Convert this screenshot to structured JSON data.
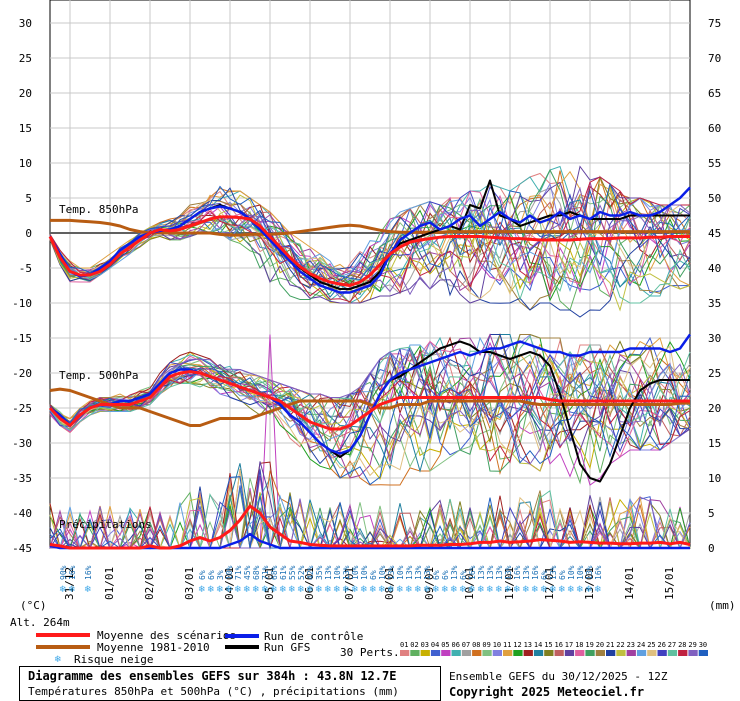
{
  "chart_data": {
    "type": "line",
    "title": "Diagramme des ensembles GEFS sur 384h : 43.8N 12.7E",
    "subtitle": "Températures 850hPa et 500hPa (°C) , précipitations (mm)",
    "run_label": "Ensemble GEFS du 30/12/2025 - 12Z",
    "copyright": "Copyright 2025 Meteociel.fr",
    "altitude": "Alt. 264m",
    "left_unit": "(°C)",
    "right_unit": "(mm)",
    "y_left_ticks": [
      "30",
      "25",
      "20",
      "15",
      "10",
      "5",
      "0",
      "-5",
      "-10",
      "-15",
      "-20",
      "-25",
      "-30",
      "-35",
      "-40",
      "-45"
    ],
    "y_right_ticks": [
      "75",
      "70",
      "65",
      "60",
      "55",
      "50",
      "45",
      "40",
      "35",
      "30",
      "25",
      "20",
      "15",
      "10",
      "5",
      "0"
    ],
    "ylim_left": [
      -45,
      30
    ],
    "ylim_right": [
      0,
      75
    ],
    "x_dates": [
      "31/12",
      "01/01",
      "02/01",
      "03/01",
      "04/01",
      "05/01",
      "06/01",
      "07/01",
      "08/01",
      "09/01",
      "10/01",
      "11/01",
      "12/01",
      "13/01",
      "14/01",
      "15/01"
    ],
    "section_labels": {
      "t850": "Temp. 850hPa",
      "t500": "Temp. 500hPa",
      "precip": "Précipitations"
    },
    "legend": {
      "mean": "Moyenne des scénarios",
      "clim": "Moyenne 1981-2010",
      "snow": "Risque neige",
      "control": "Run de contrôle",
      "gfs": "Run GFS",
      "perts": "30 Perts."
    },
    "member_ids": [
      "01",
      "02",
      "03",
      "04",
      "05",
      "06",
      "07",
      "08",
      "09",
      "10",
      "11",
      "12",
      "13",
      "14",
      "15",
      "16",
      "17",
      "18",
      "19",
      "20",
      "21",
      "22",
      "23",
      "24",
      "25",
      "26",
      "27",
      "28",
      "29",
      "30"
    ],
    "member_colors": [
      "#e08080",
      "#60b060",
      "#c8b000",
      "#4060d0",
      "#c040c0",
      "#40b0b0",
      "#a0a0a0",
      "#d07020",
      "#80c080",
      "#8080e0",
      "#e0a040",
      "#20a020",
      "#a02020",
      "#2080a0",
      "#808020",
      "#c06060",
      "#6040a0",
      "#e060a0",
      "#40a060",
      "#a08040",
      "#2040a0",
      "#c0c040",
      "#a040a0",
      "#60a0e0",
      "#e0c080",
      "#4040c0",
      "#60c0a0",
      "#c02040",
      "#8060c0",
      "#2060c0"
    ],
    "colors": {
      "mean": "#ff1a1a",
      "clim": "#b85c12",
      "control": "#0a1ee8",
      "gfs": "#000000"
    },
    "x_steps": 65,
    "t850_mean": [
      -0.5,
      -3.5,
      -5.5,
      -6,
      -6,
      -5.5,
      -4.5,
      -3,
      -2,
      -1,
      0,
      0.5,
      0.3,
      0.5,
      1,
      1.5,
      2,
      2.3,
      2.3,
      2.2,
      2,
      1,
      -0.5,
      -2,
      -3.5,
      -4.8,
      -5.8,
      -6.5,
      -7,
      -7.3,
      -7.5,
      -7,
      -6,
      -4.5,
      -3,
      -2,
      -1.3,
      -1,
      -0.8,
      -0.6,
      -0.5,
      -0.5,
      -0.5,
      -0.5,
      -0.6,
      -0.7,
      -0.8,
      -0.8,
      -0.9,
      -1,
      -1,
      -1,
      -1,
      -0.9,
      -0.8,
      -0.8,
      -0.8,
      -0.7,
      -0.7,
      -0.7,
      -0.6,
      -0.6,
      -0.5,
      -0.5,
      -0.5
    ],
    "t850_clim": [
      1.8,
      1.8,
      1.8,
      1.7,
      1.6,
      1.5,
      1.3,
      1.0,
      0.5,
      0.2,
      0.0,
      0.0,
      0.0,
      0.0,
      0.0,
      0.0,
      0.0,
      -0.2,
      -0.3,
      -0.3,
      -0.2,
      -0.2,
      -0.2,
      -0.1,
      0.0,
      0.2,
      0.4,
      0.6,
      0.8,
      1.0,
      1.1,
      1.0,
      0.7,
      0.4,
      0.2,
      0.1,
      0.1,
      0.1,
      0.1,
      0.1,
      0.2,
      0.2,
      0.2,
      0.2,
      0.2,
      0.2,
      0.2,
      0.2,
      0.2,
      0.2,
      0.2,
      0.2,
      0.2,
      0.2,
      0.2,
      0.2,
      0.2,
      0.2,
      0.2,
      0.2,
      0.2,
      0.2,
      0.2,
      0.2,
      0.2
    ],
    "t850_control": [
      -0.5,
      -3,
      -5.5,
      -6.2,
      -6,
      -5,
      -4,
      -2.5,
      -1.5,
      -0.5,
      0,
      0.3,
      0.5,
      1,
      2,
      3,
      3.5,
      3.8,
      3.5,
      3,
      2,
      0.5,
      -1,
      -2.5,
      -4,
      -5.5,
      -6.5,
      -7.5,
      -8,
      -8.5,
      -8.5,
      -8,
      -7.5,
      -6,
      -3,
      -1,
      0,
      1,
      1.5,
      0.5,
      1,
      2,
      2.5,
      1,
      2,
      3,
      2,
      1.5,
      2.5,
      1.5,
      2,
      3,
      2,
      2.5,
      2,
      3,
      2.5,
      2.5,
      3,
      2.5,
      2.5,
      3,
      4,
      5,
      6.5
    ],
    "t850_gfs": [
      -0.5,
      -3,
      -5.5,
      -6,
      -6,
      -5,
      -4,
      -3,
      -2,
      -1,
      0,
      0.5,
      0.5,
      1,
      2,
      3,
      3.5,
      4,
      3.5,
      3,
      2,
      1,
      -0.5,
      -2,
      -3.5,
      -5,
      -6,
      -7,
      -7.5,
      -8,
      -8,
      -7.5,
      -7,
      -5.5,
      -3,
      -1.5,
      -1,
      -0.5,
      0,
      0.5,
      1,
      0.5,
      4,
      3.5,
      7.5,
      2.5,
      2,
      1,
      1.5,
      2,
      2.5,
      2.5,
      3,
      2.5,
      2,
      2,
      2,
      2,
      2.5,
      2.5,
      2.5,
      2.5,
      2.5,
      2.5,
      2.5
    ],
    "t850_spread_min": [
      -1,
      -4.5,
      -7,
      -7,
      -7,
      -6,
      -5,
      -4,
      -3,
      -2,
      -1,
      -0.5,
      -1,
      -1,
      -0.5,
      0,
      0,
      0,
      -1,
      -1.5,
      -3,
      -5,
      -7,
      -8,
      -9,
      -9.5,
      -9.5,
      -9.5,
      -10,
      -10,
      -10,
      -10,
      -9.5,
      -9,
      -9,
      -9,
      -9,
      -8.5,
      -8,
      -9,
      -9,
      -9,
      -10,
      -9.5,
      -10,
      -10.5,
      -10,
      -11,
      -11,
      -10,
      -10,
      -11,
      -11,
      -12,
      -11,
      -13.5,
      -12,
      -11,
      -10,
      -10,
      -9,
      -9,
      -8,
      -8,
      -7.5
    ],
    "t850_spread_max": [
      -0.2,
      -2,
      -4,
      -5,
      -5,
      -4,
      -3,
      -2,
      -1,
      0,
      0.8,
      1.5,
      2,
      3,
      4,
      5.5,
      6.5,
      7.2,
      6.5,
      6,
      5,
      4,
      3,
      1.5,
      0,
      -1,
      -2,
      -3,
      -4,
      -4.5,
      -4,
      -2,
      -1,
      0,
      2,
      3,
      3.5,
      4,
      4.5,
      4,
      5,
      5,
      6,
      6,
      7,
      6.5,
      6,
      7,
      8,
      8.5,
      9,
      9.5,
      10,
      9.5,
      9,
      8,
      7,
      6,
      5,
      5,
      4.5,
      4,
      4,
      4,
      4
    ],
    "t500_mean": [
      -25,
      -26.5,
      -27.5,
      -26,
      -25,
      -24.5,
      -24.5,
      -24.5,
      -24.5,
      -24,
      -23.5,
      -22,
      -20.5,
      -20,
      -19.8,
      -20,
      -20.5,
      -21,
      -21.5,
      -22,
      -22.5,
      -23,
      -23.5,
      -24,
      -25,
      -26,
      -27,
      -27.5,
      -28,
      -28,
      -27.5,
      -26.5,
      -25.5,
      -24.5,
      -24,
      -23.5,
      -23.5,
      -23.5,
      -23.5,
      -23.5,
      -23.5,
      -23.5,
      -23.5,
      -23.5,
      -23.5,
      -23.5,
      -23.5,
      -23.5,
      -23.5,
      -23.5,
      -23.8,
      -24,
      -24,
      -24,
      -24,
      -24,
      -24,
      -24,
      -24,
      -24,
      -24,
      -24,
      -24,
      -24,
      -24
    ],
    "t500_clim": [
      -22.5,
      -22.3,
      -22.5,
      -23,
      -23.5,
      -24,
      -24.5,
      -25,
      -25,
      -25,
      -25.5,
      -26,
      -26.5,
      -27,
      -27.5,
      -27.5,
      -27,
      -26.5,
      -26.5,
      -26.5,
      -26.5,
      -26,
      -25.5,
      -25,
      -24.5,
      -24,
      -24,
      -24,
      -24,
      -24,
      -24,
      -24,
      -24.5,
      -25,
      -25,
      -24.5,
      -24.5,
      -24.5,
      -24,
      -24,
      -24,
      -24,
      -24,
      -24,
      -24,
      -24,
      -24,
      -24,
      -24.3,
      -24.5,
      -24.5,
      -24.5,
      -24.5,
      -24.5,
      -24.5,
      -24.5,
      -24.5,
      -24.5,
      -24.5,
      -24.5,
      -24.5,
      -24.5,
      -24.5,
      -24.3,
      -24.3
    ],
    "t500_control": [
      -25,
      -26,
      -27.5,
      -26,
      -25,
      -24.5,
      -24.5,
      -24,
      -24,
      -23.5,
      -23,
      -21.5,
      -20,
      -19.5,
      -19.5,
      -20,
      -20.5,
      -21,
      -21.5,
      -22,
      -22.5,
      -23,
      -23.5,
      -24.5,
      -26,
      -27,
      -28.5,
      -30,
      -31,
      -31.5,
      -31,
      -29,
      -26,
      -23,
      -21,
      -20,
      -19.5,
      -19,
      -18.5,
      -18,
      -17.5,
      -17,
      -17.5,
      -17,
      -16.5,
      -16.5,
      -16,
      -15.5,
      -16,
      -16.5,
      -17,
      -17,
      -17.5,
      -17.5,
      -17,
      -17,
      -17,
      -17,
      -16.5,
      -16.5,
      -16.5,
      -16.5,
      -17,
      -16.5,
      -14.5
    ],
    "t500_gfs": [
      -25,
      -26,
      -27.5,
      -26,
      -25,
      -24.5,
      -24.5,
      -24,
      -24,
      -23.5,
      -23,
      -21.5,
      -20,
      -19.5,
      -19.5,
      -20,
      -20.5,
      -21,
      -21.5,
      -22,
      -22.5,
      -23,
      -23.5,
      -24.5,
      -26,
      -27,
      -28.5,
      -30,
      -31,
      -32,
      -31,
      -29,
      -26,
      -23,
      -21,
      -20.5,
      -19.5,
      -18.5,
      -17.5,
      -16.5,
      -16,
      -15.5,
      -16,
      -17,
      -17,
      -17.5,
      -18,
      -17.5,
      -17,
      -17.5,
      -19,
      -23,
      -28,
      -33,
      -35,
      -35.5,
      -33,
      -29,
      -25,
      -22.5,
      -21.5,
      -21,
      -21,
      -21,
      -21
    ],
    "t500_spread_min": [
      -26,
      -27.5,
      -28.5,
      -27,
      -26,
      -25.5,
      -25.5,
      -25.5,
      -25.5,
      -25,
      -24.5,
      -23,
      -22,
      -21.5,
      -21.5,
      -22,
      -22.5,
      -23,
      -23.5,
      -24,
      -25,
      -26,
      -27,
      -28,
      -29.5,
      -31,
      -33,
      -34,
      -35,
      -35,
      -35,
      -35,
      -36,
      -36,
      -36,
      -36,
      -35,
      -34,
      -34,
      -33,
      -32,
      -31,
      -32,
      -33,
      -34,
      -34.5,
      -35,
      -34,
      -33,
      -34,
      -35,
      -35,
      -36,
      -36,
      -36,
      -35,
      -33,
      -32,
      -31,
      -31,
      -31,
      -31,
      -30,
      -29,
      -28
    ],
    "t500_spread_max": [
      -24.5,
      -25.5,
      -26.5,
      -25,
      -24,
      -23.5,
      -23.5,
      -23,
      -23,
      -22.5,
      -22,
      -20,
      -18.5,
      -17.5,
      -17,
      -17.5,
      -18,
      -18.5,
      -19,
      -19.5,
      -20,
      -20.5,
      -21,
      -21.5,
      -22,
      -22.5,
      -23,
      -23,
      -23.5,
      -23.5,
      -23,
      -22,
      -20,
      -18,
      -17,
      -16.5,
      -16,
      -16,
      -15.5,
      -15,
      -15,
      -15,
      -15,
      -15,
      -14.5,
      -14.5,
      -14.5,
      -14.5,
      -14.5,
      -15,
      -15,
      -15,
      -15,
      -16,
      -16,
      -16,
      -16,
      -15.5,
      -15.5,
      -15.5,
      -15,
      -15,
      -15,
      -15,
      -14.5
    ],
    "precip_mean": [
      0.5,
      0.3,
      0,
      0,
      0,
      0,
      0,
      0,
      0,
      0,
      0.3,
      0,
      0,
      0.3,
      1,
      1.5,
      1,
      1.5,
      2.5,
      4,
      6,
      5,
      3,
      2,
      1,
      0.8,
      0.5,
      0.4,
      0.3,
      0.3,
      0.3,
      0.3,
      0.3,
      0.3,
      0.3,
      0.3,
      0.3,
      0.4,
      0.4,
      0.4,
      0.5,
      0.5,
      0.6,
      0.8,
      0.8,
      1,
      0.8,
      0.9,
      1,
      1.2,
      1.1,
      1,
      0.8,
      0.9,
      0.8,
      0.7,
      0.7,
      0.6,
      0.6,
      0.7,
      0.7,
      0.8,
      0.6,
      0.8,
      0.5
    ],
    "precip_control": [
      0.3,
      0,
      0,
      0,
      0,
      0,
      0,
      0,
      0,
      0,
      0,
      0,
      0,
      0,
      0,
      0,
      0,
      0,
      0.5,
      1,
      2,
      1,
      0.5,
      0,
      0,
      0,
      0,
      0,
      0,
      0,
      0,
      0,
      0,
      0,
      0,
      0,
      0,
      0,
      0,
      0,
      0,
      0,
      0,
      0,
      0,
      0,
      0,
      0,
      0,
      0,
      0,
      0,
      0,
      0,
      0,
      0,
      0,
      0,
      0,
      0,
      0,
      0,
      0,
      0,
      0
    ],
    "precip_peak": {
      "value": 30.5,
      "date": "04/01"
    },
    "snow_risk": [
      {
        "pos": 1.3,
        "pct": "90%"
      },
      {
        "pos": 2.2,
        "pct": "16%"
      },
      {
        "pos": 3.8,
        "pct": "16%"
      },
      {
        "pos": 15.2,
        "pct": "6%"
      },
      {
        "pos": 16.1,
        "pct": "6%"
      },
      {
        "pos": 17.0,
        "pct": "3%"
      },
      {
        "pos": 17.9,
        "pct": "10%"
      },
      {
        "pos": 18.8,
        "pct": "71%"
      },
      {
        "pos": 19.7,
        "pct": "45%"
      },
      {
        "pos": 20.6,
        "pct": "68%"
      },
      {
        "pos": 21.5,
        "pct": "71%"
      },
      {
        "pos": 22.4,
        "pct": "68%"
      },
      {
        "pos": 23.3,
        "pct": "61%"
      },
      {
        "pos": 24.2,
        "pct": "55%"
      },
      {
        "pos": 25.1,
        "pct": "52%"
      },
      {
        "pos": 26.0,
        "pct": "42%"
      },
      {
        "pos": 26.9,
        "pct": "35%"
      },
      {
        "pos": 27.8,
        "pct": "13%"
      },
      {
        "pos": 28.7,
        "pct": "10%"
      },
      {
        "pos": 29.6,
        "pct": "13%"
      },
      {
        "pos": 30.5,
        "pct": "10%"
      },
      {
        "pos": 31.4,
        "pct": "10%"
      },
      {
        "pos": 32.3,
        "pct": "6%"
      },
      {
        "pos": 33.2,
        "pct": "10%"
      },
      {
        "pos": 34.1,
        "pct": "13%"
      },
      {
        "pos": 35.0,
        "pct": "10%"
      },
      {
        "pos": 35.9,
        "pct": "13%"
      },
      {
        "pos": 36.8,
        "pct": "13%"
      },
      {
        "pos": 37.7,
        "pct": "13%"
      },
      {
        "pos": 38.6,
        "pct": "6%"
      },
      {
        "pos": 39.5,
        "pct": "6%"
      },
      {
        "pos": 40.4,
        "pct": "13%"
      },
      {
        "pos": 41.3,
        "pct": "6%"
      },
      {
        "pos": 42.2,
        "pct": "16%"
      },
      {
        "pos": 43.1,
        "pct": "13%"
      },
      {
        "pos": 44.0,
        "pct": "13%"
      },
      {
        "pos": 44.9,
        "pct": "13%"
      },
      {
        "pos": 45.8,
        "pct": "13%"
      },
      {
        "pos": 46.7,
        "pct": "16%"
      },
      {
        "pos": 47.6,
        "pct": "13%"
      },
      {
        "pos": 48.5,
        "pct": "16%"
      },
      {
        "pos": 49.4,
        "pct": "6%"
      },
      {
        "pos": 50.3,
        "pct": "13%"
      },
      {
        "pos": 51.2,
        "pct": "6%"
      },
      {
        "pos": 52.1,
        "pct": "10%"
      },
      {
        "pos": 53.0,
        "pct": "10%"
      },
      {
        "pos": 53.9,
        "pct": "13%"
      },
      {
        "pos": 54.8,
        "pct": "16%"
      }
    ]
  }
}
